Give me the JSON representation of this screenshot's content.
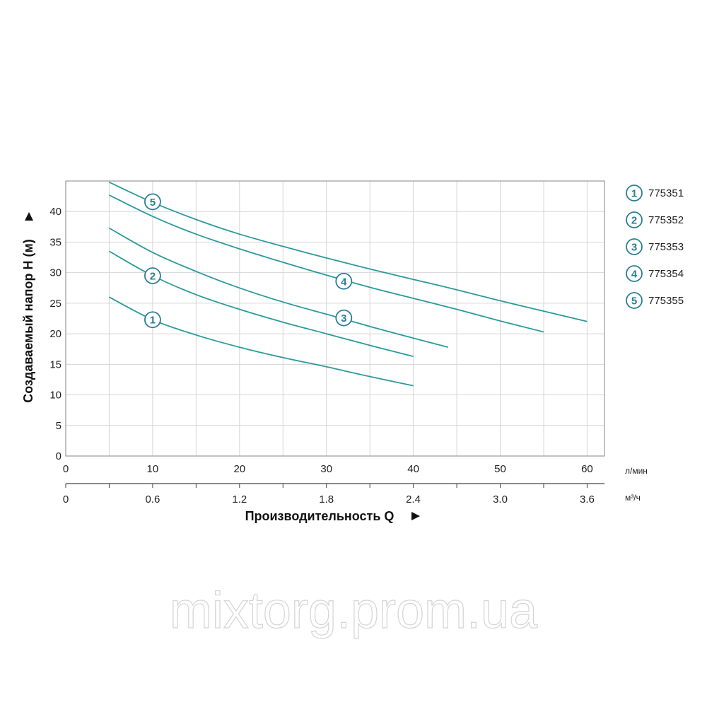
{
  "colors": {
    "curve": "#2a9a9c",
    "marker": "#2a7f94",
    "grid": "#d6d6d6",
    "frame": "#9a9a9a"
  },
  "chart_data": {
    "type": "line",
    "title": "",
    "xlabel": "Производительность Q",
    "ylabel": "Создаваемый напор H (м)",
    "x_unit_primary": "л/мин",
    "x_unit_secondary": "м³/ч",
    "xlim": [
      0,
      62
    ],
    "ylim": [
      0,
      45
    ],
    "grid": true,
    "legend_position": "right",
    "x_ticks": [
      "0",
      "10",
      "20",
      "30",
      "40",
      "50",
      "60"
    ],
    "x_ticks_secondary": [
      "0",
      "0.6",
      "1.2",
      "1.8",
      "2.4",
      "3.0",
      "3.6"
    ],
    "y_ticks": [
      "0",
      "5",
      "10",
      "15",
      "20",
      "25",
      "30",
      "35",
      "40"
    ],
    "series": [
      {
        "name": "775351",
        "marker": "1",
        "marker_at": [
          10,
          22.3
        ],
        "points": [
          [
            5,
            26
          ],
          [
            10,
            22.3
          ],
          [
            15,
            19.8
          ],
          [
            20,
            17.8
          ],
          [
            25,
            16.1
          ],
          [
            30,
            14.6
          ],
          [
            35,
            13.0
          ],
          [
            40,
            11.5
          ]
        ]
      },
      {
        "name": "775352",
        "marker": "2",
        "marker_at": [
          10,
          29.5
        ],
        "points": [
          [
            5,
            33.5
          ],
          [
            10,
            29.5
          ],
          [
            15,
            26.4
          ],
          [
            20,
            24.0
          ],
          [
            25,
            21.9
          ],
          [
            30,
            20.0
          ],
          [
            35,
            18.1
          ],
          [
            40,
            16.3
          ]
        ]
      },
      {
        "name": "775353",
        "marker": "3",
        "marker_at": [
          32,
          22.6
        ],
        "points": [
          [
            5,
            37.3
          ],
          [
            10,
            33.3
          ],
          [
            15,
            30.2
          ],
          [
            20,
            27.5
          ],
          [
            25,
            25.2
          ],
          [
            30,
            23.2
          ],
          [
            35,
            21.2
          ],
          [
            40,
            19.3
          ],
          [
            44,
            17.8
          ]
        ]
      },
      {
        "name": "775354",
        "marker": "4",
        "marker_at": [
          32,
          28.6
        ],
        "points": [
          [
            5,
            42.7
          ],
          [
            10,
            39.2
          ],
          [
            15,
            36.3
          ],
          [
            20,
            33.9
          ],
          [
            25,
            31.7
          ],
          [
            30,
            29.6
          ],
          [
            35,
            27.6
          ],
          [
            40,
            25.8
          ],
          [
            45,
            24.0
          ],
          [
            50,
            22.1
          ],
          [
            55,
            20.3
          ]
        ]
      },
      {
        "name": "775355",
        "marker": "5",
        "marker_at": [
          10,
          41.6
        ],
        "points": [
          [
            5,
            44.8
          ],
          [
            10,
            41.5
          ],
          [
            15,
            38.7
          ],
          [
            20,
            36.3
          ],
          [
            25,
            34.3
          ],
          [
            30,
            32.4
          ],
          [
            35,
            30.6
          ],
          [
            40,
            28.9
          ],
          [
            45,
            27.2
          ],
          [
            50,
            25.4
          ],
          [
            55,
            23.7
          ],
          [
            60,
            22.0
          ]
        ]
      }
    ]
  },
  "watermark": "mixtorg.prom.ua"
}
